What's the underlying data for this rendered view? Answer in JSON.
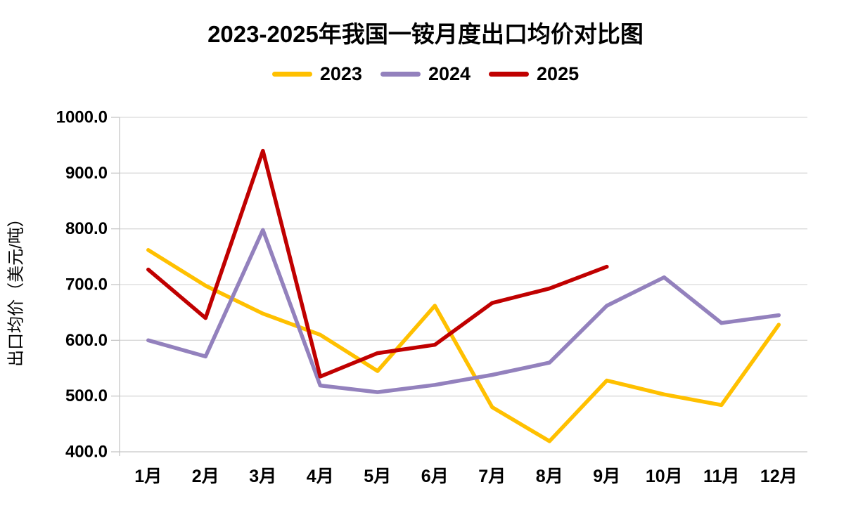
{
  "chart_data": {
    "type": "line",
    "title": "2023-2025年我国一铵月度出口均价对比图",
    "ylabel": "出口均价（美元/吨）",
    "xlabel": "",
    "categories": [
      "1月",
      "2月",
      "3月",
      "4月",
      "5月",
      "6月",
      "7月",
      "8月",
      "9月",
      "10月",
      "11月",
      "12月"
    ],
    "series": [
      {
        "name": "2023",
        "color": "#FFC000",
        "values": [
          762,
          698,
          648,
          610,
          545,
          662,
          480,
          419,
          528,
          503,
          484,
          628
        ]
      },
      {
        "name": "2024",
        "color": "#9381BD",
        "values": [
          600,
          571,
          798,
          519,
          507,
          520,
          538,
          560,
          662,
          713,
          631,
          645
        ]
      },
      {
        "name": "2025",
        "color": "#C00000",
        "values": [
          727,
          640,
          940,
          535,
          577,
          592,
          667,
          693,
          732,
          null,
          null,
          null
        ]
      }
    ],
    "ylim": [
      400,
      1000
    ],
    "ytick_step": 100,
    "ytick_decimals": 1,
    "grid": true,
    "legend_position": "top",
    "gridline_color": "#D9D9D9",
    "axis_color": "#C6C6C6",
    "background_color": "#FFFFFF"
  }
}
